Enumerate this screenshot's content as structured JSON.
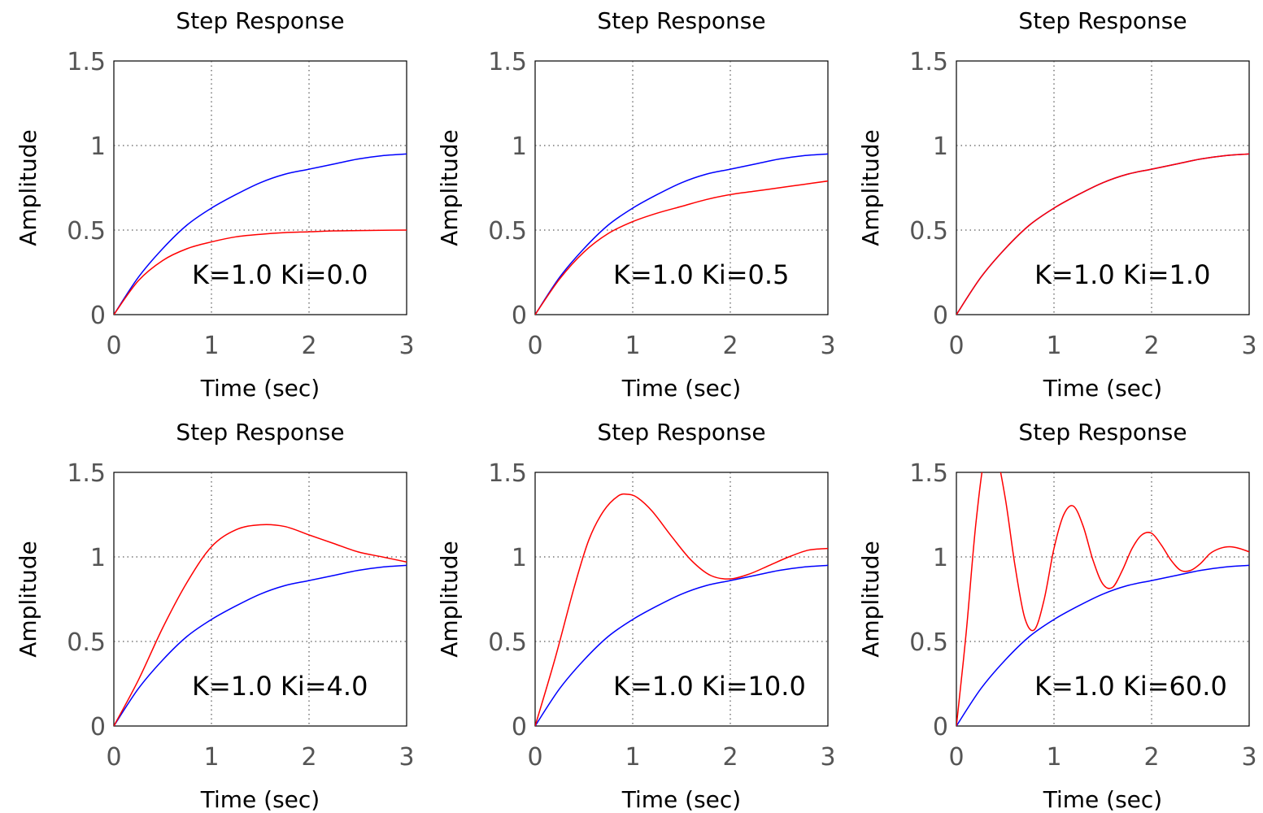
{
  "chart_data": [
    {
      "type": "line",
      "title": "Step Response",
      "xlabel": "Time (sec)",
      "ylabel": "Amplitude",
      "xlim": [
        0,
        3
      ],
      "ylim": [
        0,
        1.5
      ],
      "xticks": [
        "0",
        "1",
        "2",
        "3"
      ],
      "yticks": [
        "0",
        "0.5",
        "1",
        "1.5"
      ],
      "grid": true,
      "annotation": "K=1.0  Ki=0.0",
      "series": [
        {
          "color": "#0000ff",
          "x": [
            0,
            0.25,
            0.5,
            0.75,
            1,
            1.25,
            1.5,
            1.75,
            2,
            2.25,
            2.5,
            2.75,
            3
          ],
          "y": [
            0,
            0.22,
            0.39,
            0.53,
            0.63,
            0.71,
            0.78,
            0.83,
            0.86,
            0.89,
            0.92,
            0.94,
            0.95
          ]
        },
        {
          "color": "#ff0000",
          "x": [
            0,
            0.25,
            0.5,
            0.75,
            1,
            1.25,
            1.5,
            1.75,
            2,
            2.25,
            2.5,
            2.75,
            3
          ],
          "y": [
            0,
            0.2,
            0.32,
            0.39,
            0.43,
            0.46,
            0.475,
            0.485,
            0.49,
            0.495,
            0.497,
            0.499,
            0.5
          ]
        }
      ]
    },
    {
      "type": "line",
      "title": "Step Response",
      "xlabel": "Time (sec)",
      "ylabel": "Amplitude",
      "xlim": [
        0,
        3
      ],
      "ylim": [
        0,
        1.5
      ],
      "xticks": [
        "0",
        "1",
        "2",
        "3"
      ],
      "yticks": [
        "0",
        "0.5",
        "1",
        "1.5"
      ],
      "grid": true,
      "annotation": "K=1.0  Ki=0.5",
      "series": [
        {
          "color": "#0000ff",
          "x": [
            0,
            0.25,
            0.5,
            0.75,
            1,
            1.25,
            1.5,
            1.75,
            2,
            2.25,
            2.5,
            2.75,
            3
          ],
          "y": [
            0,
            0.22,
            0.39,
            0.53,
            0.63,
            0.71,
            0.78,
            0.83,
            0.86,
            0.89,
            0.92,
            0.94,
            0.95
          ]
        },
        {
          "color": "#ff0000",
          "x": [
            0,
            0.25,
            0.5,
            0.75,
            1,
            1.25,
            1.5,
            1.75,
            2,
            2.25,
            2.5,
            2.75,
            3
          ],
          "y": [
            0,
            0.21,
            0.37,
            0.48,
            0.55,
            0.6,
            0.64,
            0.68,
            0.71,
            0.73,
            0.75,
            0.77,
            0.79
          ]
        }
      ]
    },
    {
      "type": "line",
      "title": "Step Response",
      "xlabel": "Time (sec)",
      "ylabel": "Amplitude",
      "xlim": [
        0,
        3
      ],
      "ylim": [
        0,
        1.5
      ],
      "xticks": [
        "0",
        "1",
        "2",
        "3"
      ],
      "yticks": [
        "0",
        "0.5",
        "1",
        "1.5"
      ],
      "grid": true,
      "annotation": "K=1.0  Ki=1.0",
      "series": [
        {
          "color": "#0000ff",
          "x": [
            0,
            0.25,
            0.5,
            0.75,
            1,
            1.25,
            1.5,
            1.75,
            2,
            2.25,
            2.5,
            2.75,
            3
          ],
          "y": [
            0,
            0.22,
            0.39,
            0.53,
            0.63,
            0.71,
            0.78,
            0.83,
            0.86,
            0.89,
            0.92,
            0.94,
            0.95
          ]
        },
        {
          "color": "#ff0000",
          "x": [
            0,
            0.25,
            0.5,
            0.75,
            1,
            1.25,
            1.5,
            1.75,
            2,
            2.25,
            2.5,
            2.75,
            3
          ],
          "y": [
            0,
            0.22,
            0.39,
            0.53,
            0.63,
            0.71,
            0.78,
            0.83,
            0.86,
            0.89,
            0.92,
            0.94,
            0.95
          ]
        }
      ]
    },
    {
      "type": "line",
      "title": "Step Response",
      "xlabel": "Time (sec)",
      "ylabel": "Amplitude",
      "xlim": [
        0,
        3
      ],
      "ylim": [
        0,
        1.5
      ],
      "xticks": [
        "0",
        "1",
        "2",
        "3"
      ],
      "yticks": [
        "0",
        "0.5",
        "1",
        "1.5"
      ],
      "grid": true,
      "annotation": "K=1.0  Ki=4.0",
      "series": [
        {
          "color": "#0000ff",
          "x": [
            0,
            0.25,
            0.5,
            0.75,
            1,
            1.25,
            1.5,
            1.75,
            2,
            2.25,
            2.5,
            2.75,
            3
          ],
          "y": [
            0,
            0.22,
            0.39,
            0.53,
            0.63,
            0.71,
            0.78,
            0.83,
            0.86,
            0.89,
            0.92,
            0.94,
            0.95
          ]
        },
        {
          "color": "#ff0000",
          "x": [
            0,
            0.25,
            0.5,
            0.75,
            1,
            1.25,
            1.5,
            1.75,
            2,
            2.25,
            2.5,
            2.75,
            3
          ],
          "y": [
            0,
            0.27,
            0.58,
            0.85,
            1.06,
            1.16,
            1.19,
            1.18,
            1.13,
            1.08,
            1.03,
            1.0,
            0.97
          ]
        }
      ]
    },
    {
      "type": "line",
      "title": "Step Response",
      "xlabel": "Time (sec)",
      "ylabel": "Amplitude",
      "xlim": [
        0,
        3
      ],
      "ylim": [
        0,
        1.5
      ],
      "xticks": [
        "0",
        "1",
        "2",
        "3"
      ],
      "yticks": [
        "0",
        "0.5",
        "1",
        "1.5"
      ],
      "grid": true,
      "annotation": "K=1.0  Ki=10.0",
      "series": [
        {
          "color": "#0000ff",
          "x": [
            0,
            0.25,
            0.5,
            0.75,
            1,
            1.25,
            1.5,
            1.75,
            2,
            2.25,
            2.5,
            2.75,
            3
          ],
          "y": [
            0,
            0.22,
            0.39,
            0.53,
            0.63,
            0.71,
            0.78,
            0.83,
            0.86,
            0.89,
            0.92,
            0.94,
            0.95
          ]
        },
        {
          "color": "#ff0000",
          "x": [
            0,
            0.2,
            0.4,
            0.55,
            0.7,
            0.85,
            0.95,
            1.05,
            1.2,
            1.4,
            1.6,
            1.8,
            2.0,
            2.2,
            2.4,
            2.6,
            2.8,
            3.0
          ],
          "y": [
            0,
            0.39,
            0.82,
            1.1,
            1.27,
            1.36,
            1.37,
            1.35,
            1.27,
            1.12,
            0.98,
            0.89,
            0.87,
            0.9,
            0.95,
            1.0,
            1.04,
            1.05
          ]
        }
      ]
    },
    {
      "type": "line",
      "title": "Step Response",
      "xlabel": "Time (sec)",
      "ylabel": "Amplitude",
      "xlim": [
        0,
        3
      ],
      "ylim": [
        0,
        1.5
      ],
      "xticks": [
        "0",
        "1",
        "2",
        "3"
      ],
      "yticks": [
        "0",
        "0.5",
        "1",
        "1.5"
      ],
      "grid": true,
      "annotation": "K=1.0  Ki=60.0",
      "series": [
        {
          "color": "#0000ff",
          "x": [
            0,
            0.25,
            0.5,
            0.75,
            1,
            1.25,
            1.5,
            1.75,
            2,
            2.25,
            2.5,
            2.75,
            3
          ],
          "y": [
            0,
            0.22,
            0.39,
            0.53,
            0.63,
            0.71,
            0.78,
            0.83,
            0.86,
            0.89,
            0.92,
            0.94,
            0.95
          ]
        },
        {
          "color": "#ff0000",
          "x": [
            0,
            0.1,
            0.2,
            0.3,
            0.4,
            0.5,
            0.6,
            0.7,
            0.8,
            0.9,
            1.0,
            1.1,
            1.2,
            1.3,
            1.4,
            1.5,
            1.6,
            1.7,
            1.8,
            1.9,
            2.0,
            2.1,
            2.2,
            2.3,
            2.4,
            2.5,
            2.6,
            2.7,
            2.8,
            2.9,
            3.0
          ],
          "y": [
            0,
            0.55,
            1.2,
            1.62,
            1.62,
            1.35,
            0.95,
            0.64,
            0.57,
            0.75,
            1.05,
            1.25,
            1.3,
            1.18,
            0.98,
            0.84,
            0.82,
            0.92,
            1.05,
            1.13,
            1.14,
            1.07,
            0.98,
            0.92,
            0.92,
            0.96,
            1.02,
            1.05,
            1.06,
            1.05,
            1.03
          ]
        }
      ]
    }
  ]
}
